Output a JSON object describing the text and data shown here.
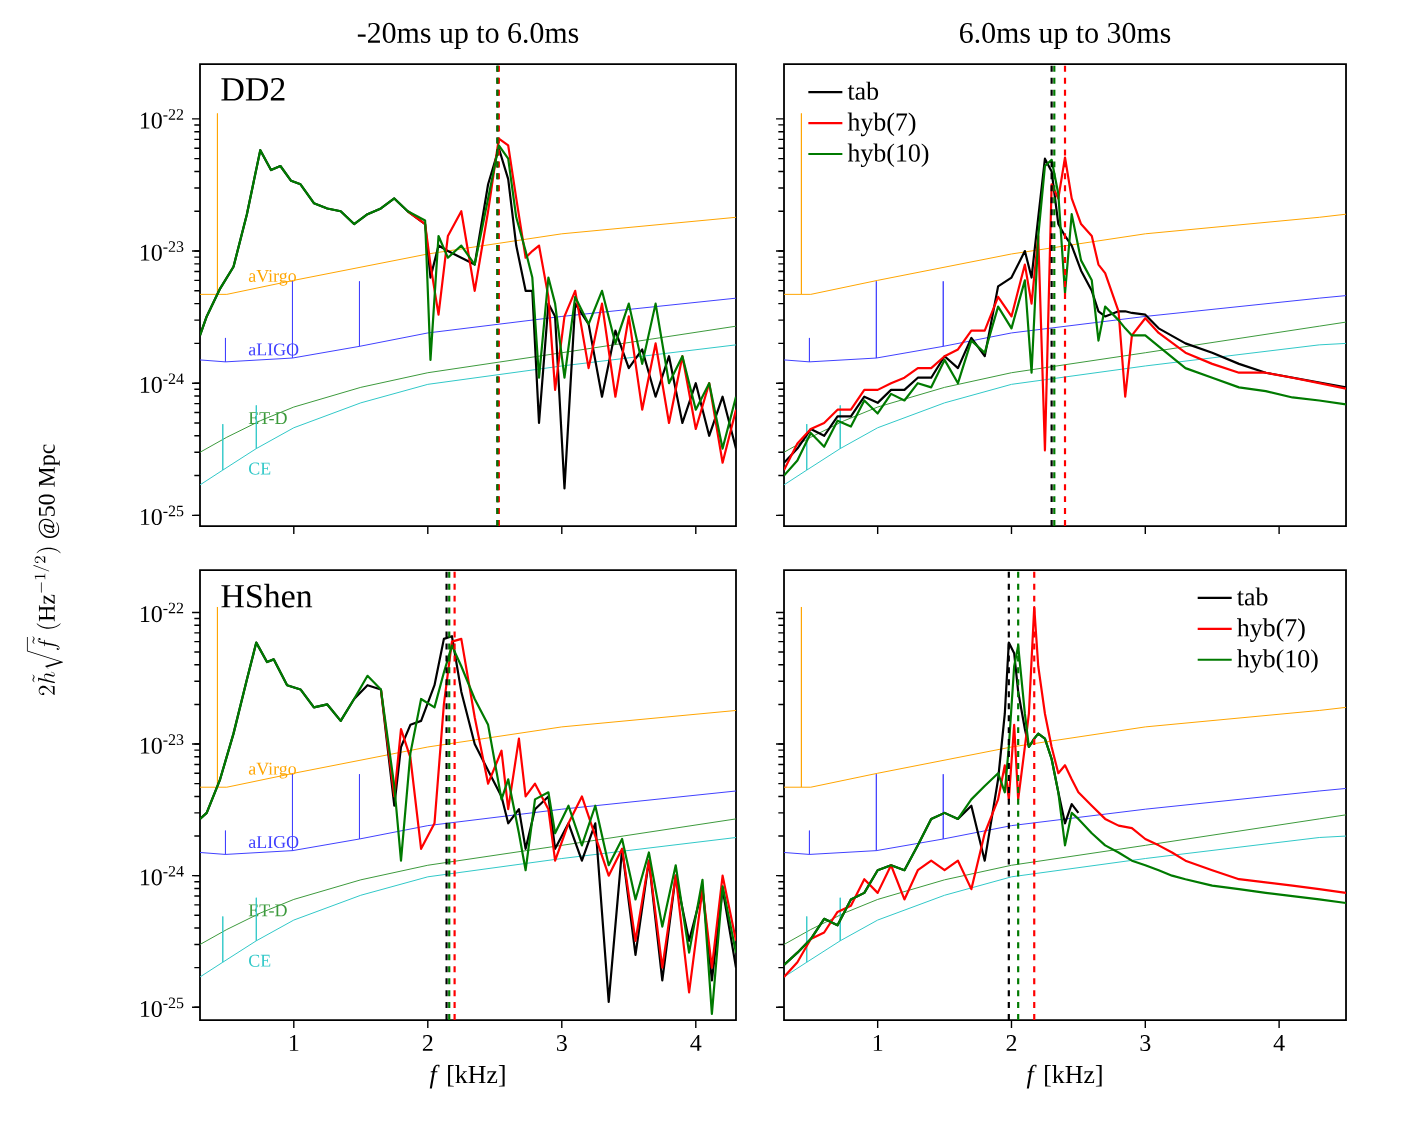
{
  "chart_data": [
    {
      "type": "line",
      "title": "-20ms up to 6.0ms",
      "ylabel": "2\\tilde{h}\\sqrt{\\tilde{f}}\\ (\\mathrm{Hz}^{-1/2})\\ \\mathrm{@50\\ Mpc}",
      "annotations": [
        "DD2"
      ],
      "log": "y",
      "legend": false,
      "tick_labels": "y",
      "xlim": [
        0.3,
        4.3
      ],
      "ylim": [
        8.3e-26,
        2.6e-22
      ],
      "xticks": [
        1,
        2,
        3,
        4
      ],
      "yticks": [
        {
          "value": 1e-25,
          "label": "10$^{-25}$"
        },
        {
          "value": 1e-24,
          "label": "10$^{-24}$"
        },
        {
          "value": 1e-23,
          "label": "10$^{-23}$"
        },
        {
          "value": 1e-22,
          "label": "10$^{-22}$"
        }
      ],
      "x": [
        0.3,
        0.35,
        0.45,
        0.55,
        0.65,
        0.75,
        0.83,
        0.9,
        0.98,
        1.05,
        1.15,
        1.25,
        1.35,
        1.45,
        1.55,
        1.65,
        1.75,
        1.85,
        1.98,
        2.02,
        2.08,
        2.15,
        2.25,
        2.35,
        2.45,
        2.53,
        2.6,
        2.66,
        2.73,
        2.78,
        2.83,
        2.9,
        2.95,
        3.02,
        3.1,
        3.2,
        3.3,
        3.4,
        3.5,
        3.6,
        3.7,
        3.8,
        3.9,
        4.0,
        4.1,
        4.2,
        4.3
      ],
      "series": [
        {
          "name": "aVirgo",
          "color": "#ffa500",
          "x": [
            0.3,
            0.43,
            0.43,
            0.43,
            0.5,
            1.0,
            2.0,
            3.0,
            4.3
          ],
          "values": [
            4.7e-24,
            4.7e-24,
            1.1e-22,
            4.7e-24,
            4.7e-24,
            6e-24,
            9.5e-24,
            1.35e-23,
            1.8e-23
          ]
        },
        {
          "name": "aLIGO",
          "color": "#4040ff",
          "x": [
            0.3,
            0.49,
            0.49,
            0.49,
            0.99,
            0.99,
            0.99,
            1.49,
            1.49,
            1.49,
            2.0,
            3.0,
            4.3
          ],
          "values": [
            1.5e-24,
            1.45e-24,
            2.2e-24,
            1.45e-24,
            1.55e-24,
            5.9e-24,
            1.55e-24,
            1.9e-24,
            5.9e-24,
            1.9e-24,
            2.4e-24,
            3.2e-24,
            4.4e-24
          ]
        },
        {
          "name": "ET-D",
          "color": "#3c9a3c",
          "x": [
            0.3,
            0.5,
            0.75,
            1.0,
            1.5,
            2.0,
            3.0,
            4.3
          ],
          "values": [
            3e-25,
            3.9e-25,
            5.2e-25,
            6.6e-25,
            9.3e-25,
            1.2e-24,
            1.7e-24,
            2.7e-24
          ]
        },
        {
          "name": "CE",
          "color": "#30c8c8",
          "x": [
            0.3,
            0.47,
            0.47,
            0.47,
            0.72,
            0.72,
            0.72,
            1.0,
            1.5,
            2.0,
            3.0,
            4.3
          ],
          "values": [
            1.7e-25,
            2.2e-25,
            4.9e-25,
            2.2e-25,
            3.2e-25,
            6.8e-25,
            3.2e-25,
            4.6e-25,
            7.1e-25,
            9.8e-25,
            1.35e-24,
            1.95e-24
          ]
        },
        {
          "color": "#000000",
          "values": [
            2.3e-24,
            3.2e-24,
            5.2e-24,
            7.6e-24,
            1.9e-23,
            5.8e-23,
            4.1e-23,
            4.4e-23,
            3.4e-23,
            3.2e-23,
            2.3e-23,
            2.1e-23,
            2e-23,
            1.6e-23,
            1.9e-23,
            2.1e-23,
            2.5e-23,
            2e-23,
            1.6e-23,
            6.3e-24,
            1.1e-23,
            1e-23,
            8.9e-24,
            7.9e-24,
            3.2e-23,
            6e-23,
            3.5e-23,
            1.1e-23,
            5e-24,
            5e-24,
            5e-25,
            4e-24,
            3.2e-24,
            1.6e-25,
            4e-24,
            2.8e-24,
            7.9e-25,
            2.5e-24,
            1.3e-24,
            1.8e-24,
            7.9e-25,
            1.6e-24,
            5e-25,
            1e-24,
            4e-25,
            7.9e-25,
            3.2e-25
          ]
        },
        {
          "color": "#ff0000",
          "values": [
            null,
            null,
            null,
            null,
            null,
            null,
            null,
            null,
            null,
            null,
            null,
            null,
            null,
            null,
            null,
            null,
            null,
            2e-23,
            1.6e-23,
            7.9e-24,
            3.3e-24,
            1.3e-23,
            2e-23,
            5e-24,
            2e-23,
            7.1e-23,
            6.3e-23,
            2.5e-23,
            8.9e-24,
            1e-23,
            1.1e-23,
            4.5e-24,
            8.9e-25,
            3.2e-24,
            5e-24,
            1.3e-24,
            4e-24,
            7.9e-25,
            3.2e-24,
            6.3e-25,
            2e-24,
            5e-25,
            1.6e-24,
            4.5e-25,
            1e-24,
            2.5e-25,
            6.3e-25
          ]
        },
        {
          "color": "#007a00",
          "values": [
            2.3e-24,
            3.2e-24,
            5.2e-24,
            7.6e-24,
            1.9e-23,
            5.8e-23,
            4.1e-23,
            4.4e-23,
            3.4e-23,
            3.2e-23,
            2.3e-23,
            2.1e-23,
            2e-23,
            1.6e-23,
            1.9e-23,
            2.1e-23,
            2.5e-23,
            2e-23,
            1.7e-23,
            1.5e-24,
            1.3e-23,
            8.9e-24,
            1.1e-23,
            7.9e-24,
            2.5e-23,
            6.3e-23,
            5e-23,
            1.8e-23,
            1e-23,
            6.3e-24,
            1.1e-24,
            6.3e-24,
            4e-24,
            1.1e-24,
            4.5e-24,
            2.8e-24,
            5e-24,
            2e-24,
            4e-24,
            1.4e-24,
            4e-24,
            1e-24,
            1.6e-24,
            6.3e-25,
            1e-24,
            3.2e-25,
            7.9e-25
          ]
        }
      ],
      "ref_lines": [
        {
          "axis": "x",
          "value": 2.52,
          "color": "#000000",
          "line_style": "dashed"
        },
        {
          "axis": "x",
          "value": 2.53,
          "color": "#ff0000",
          "line_style": "dashed"
        },
        {
          "axis": "x",
          "value": 2.52,
          "color": "#007a00",
          "line_style": "dashed"
        }
      ]
    },
    {
      "type": "line",
      "title": "6.0ms up to 30ms",
      "log": "y",
      "legend": "top left",
      "tick_labels": false,
      "xlim": [
        0.3,
        4.5
      ],
      "ylim": [
        8.3e-26,
        2.6e-22
      ],
      "xticks": [
        1,
        2,
        3,
        4
      ],
      "yticks": [
        {
          "value": 1e-25,
          "label": null
        },
        {
          "value": 1e-24,
          "label": null
        },
        {
          "value": 1e-23,
          "label": null
        },
        {
          "value": 1e-22,
          "label": null
        }
      ],
      "x": [
        0.3,
        0.4,
        0.5,
        0.6,
        0.7,
        0.8,
        0.9,
        1.0,
        1.1,
        1.2,
        1.3,
        1.4,
        1.5,
        1.6,
        1.7,
        1.8,
        1.9,
        2.0,
        2.1,
        2.15,
        2.2,
        2.25,
        2.3,
        2.35,
        2.4,
        2.45,
        2.52,
        2.6,
        2.65,
        2.7,
        2.8,
        2.85,
        2.9,
        3.0,
        3.1,
        3.3,
        3.5,
        3.7,
        3.9,
        4.1,
        4.3,
        4.5
      ],
      "series": [
        {
          "color": "#ffa500",
          "x": [
            0.3,
            0.43,
            0.43,
            0.43,
            0.5,
            1.0,
            2.0,
            3.0,
            4.3,
            4.5
          ],
          "values": [
            4.7e-24,
            4.7e-24,
            1.1e-22,
            4.7e-24,
            4.7e-24,
            6e-24,
            9.5e-24,
            1.35e-23,
            1.8e-23,
            1.9e-23
          ]
        },
        {
          "color": "#4040ff",
          "x": [
            0.3,
            0.49,
            0.49,
            0.49,
            0.99,
            0.99,
            0.99,
            1.49,
            1.49,
            1.49,
            2.0,
            3.0,
            4.3,
            4.5
          ],
          "values": [
            1.5e-24,
            1.45e-24,
            2.2e-24,
            1.45e-24,
            1.55e-24,
            5.9e-24,
            1.55e-24,
            1.9e-24,
            5.9e-24,
            1.9e-24,
            2.4e-24,
            3.2e-24,
            4.4e-24,
            4.6e-24
          ]
        },
        {
          "color": "#3c9a3c",
          "x": [
            0.3,
            0.5,
            0.75,
            1.0,
            1.5,
            2.0,
            3.0,
            4.3,
            4.5
          ],
          "values": [
            3e-25,
            3.9e-25,
            5.2e-25,
            6.6e-25,
            9.3e-25,
            1.2e-24,
            1.7e-24,
            2.7e-24,
            2.9e-24
          ]
        },
        {
          "color": "#30c8c8",
          "x": [
            0.3,
            0.47,
            0.47,
            0.47,
            0.72,
            0.72,
            0.72,
            1.0,
            1.5,
            2.0,
            3.0,
            4.3,
            4.5
          ],
          "values": [
            1.7e-25,
            2.2e-25,
            4.9e-25,
            2.2e-25,
            3.2e-25,
            6.8e-25,
            3.2e-25,
            4.6e-25,
            7.1e-25,
            9.8e-25,
            1.35e-24,
            1.95e-24,
            2e-24
          ]
        },
        {
          "name": "tab",
          "color": "#000000",
          "values": [
            2.5e-25,
            3.2e-25,
            4.5e-25,
            4e-25,
            5.6e-25,
            5.6e-25,
            7.9e-25,
            7.1e-25,
            8.9e-25,
            8.9e-25,
            1.1e-24,
            1.1e-24,
            1.6e-24,
            1.3e-24,
            2.2e-24,
            1.6e-24,
            5.4e-24,
            6.3e-24,
            1e-23,
            6.3e-24,
            1.8e-23,
            5e-23,
            4e-23,
            1.6e-23,
            1.3e-23,
            1.1e-23,
            7.1e-24,
            5e-24,
            3.5e-24,
            3.2e-24,
            3.5e-24,
            3.5e-24,
            3.4e-24,
            3.3e-24,
            2.6e-24,
            2e-24,
            1.7e-24,
            1.4e-24,
            1.2e-24,
            null,
            null,
            9.3e-25
          ]
        },
        {
          "name": "hyb(7)",
          "color": "#ff0000",
          "values": [
            2.2e-25,
            3.5e-25,
            4.5e-25,
            5e-25,
            6.3e-25,
            6.3e-25,
            8.9e-25,
            8.9e-25,
            1e-24,
            1.1e-24,
            1.3e-24,
            1.3e-24,
            1.6e-24,
            1.8e-24,
            2.5e-24,
            2.5e-24,
            4.5e-24,
            3.2e-24,
            7.9e-24,
            4e-24,
            1.3e-23,
            3.1e-25,
            3.2e-23,
            2.5e-23,
            5.1e-23,
            2.5e-23,
            1.6e-23,
            1.3e-23,
            7.9e-24,
            6.8e-24,
            3.5e-24,
            7.9e-25,
            2.3e-24,
            3.1e-24,
            2.4e-24,
            1.7e-24,
            1.4e-24,
            1.2e-24,
            1.2e-24,
            1.1e-24,
            1e-24,
            9.1e-25
          ]
        },
        {
          "name": "hyb(10)",
          "color": "#007a00",
          "values": [
            2e-25,
            2.6e-25,
            4.2e-25,
            3.3e-25,
            5.2e-25,
            4.7e-25,
            7.4e-25,
            5.9e-25,
            8.3e-25,
            7.4e-25,
            1e-24,
            9.3e-25,
            1.5e-24,
            1e-24,
            2.1e-24,
            1.7e-24,
            3.8e-24,
            2.6e-24,
            6e-24,
            1.2e-24,
            1.3e-23,
            4.4e-23,
            4.9e-23,
            2.7e-23,
            4.8e-24,
            1.9e-23,
            8.5e-24,
            6e-24,
            2.1e-24,
            3.8e-24,
            3e-24,
            2.6e-24,
            2.3e-24,
            2.3e-24,
            1.9e-24,
            1.3e-24,
            1.1e-24,
            9.3e-25,
            8.7e-25,
            7.8e-25,
            7.4e-25,
            6.9e-25
          ]
        }
      ],
      "ref_lines": [
        {
          "axis": "x",
          "value": 2.3,
          "color": "#000000",
          "line_style": "dashed"
        },
        {
          "axis": "x",
          "value": 2.4,
          "color": "#ff0000",
          "line_style": "dashed"
        },
        {
          "axis": "x",
          "value": 2.32,
          "color": "#007a00",
          "line_style": "dashed"
        }
      ]
    },
    {
      "type": "line",
      "xlabel": "*f* [kHz]",
      "annotations": [
        "HShen"
      ],
      "log": "y",
      "legend": false,
      "xlim": [
        0.3,
        4.3
      ],
      "ylim": [
        8e-26,
        2.1e-22
      ],
      "xticks": [
        1,
        2,
        3,
        4
      ],
      "yticks": [
        {
          "value": 1e-25,
          "label": "10$^{-25}$"
        },
        {
          "value": 1e-24,
          "label": "10$^{-24}$"
        },
        {
          "value": 1e-23,
          "label": "10$^{-23}$"
        },
        {
          "value": 1e-22,
          "label": "10$^{-22}$"
        }
      ],
      "x": [
        0.3,
        0.35,
        0.45,
        0.55,
        0.65,
        0.72,
        0.8,
        0.85,
        0.95,
        1.05,
        1.15,
        1.25,
        1.35,
        1.45,
        1.55,
        1.65,
        1.75,
        1.8,
        1.87,
        1.95,
        2.05,
        2.12,
        2.18,
        2.25,
        2.35,
        2.45,
        2.55,
        2.6,
        2.68,
        2.73,
        2.8,
        2.9,
        2.95,
        3.05,
        3.15,
        3.25,
        3.35,
        3.45,
        3.55,
        3.65,
        3.75,
        3.85,
        3.95,
        4.05,
        4.12,
        4.2,
        4.3
      ],
      "series": [
        {
          "name": "aVirgo",
          "color": "#ffa500",
          "x": [
            0.3,
            0.43,
            0.43,
            0.43,
            0.5,
            1.0,
            2.0,
            3.0,
            4.3
          ],
          "values": [
            4.7e-24,
            4.7e-24,
            1.1e-22,
            4.7e-24,
            4.7e-24,
            6e-24,
            9.5e-24,
            1.35e-23,
            1.8e-23
          ]
        },
        {
          "name": "aLIGO",
          "color": "#4040ff",
          "x": [
            0.3,
            0.49,
            0.49,
            0.49,
            0.99,
            0.99,
            0.99,
            1.49,
            1.49,
            1.49,
            2.0,
            3.0,
            4.3
          ],
          "values": [
            1.5e-24,
            1.45e-24,
            2.2e-24,
            1.45e-24,
            1.55e-24,
            5.9e-24,
            1.55e-24,
            1.9e-24,
            5.9e-24,
            1.9e-24,
            2.4e-24,
            3.2e-24,
            4.4e-24
          ]
        },
        {
          "name": "ET-D",
          "color": "#3c9a3c",
          "x": [
            0.3,
            0.5,
            0.75,
            1.0,
            1.5,
            2.0,
            3.0,
            4.3
          ],
          "values": [
            3e-25,
            3.9e-25,
            5.2e-25,
            6.6e-25,
            9.3e-25,
            1.2e-24,
            1.7e-24,
            2.7e-24
          ]
        },
        {
          "name": "CE",
          "color": "#30c8c8",
          "x": [
            0.3,
            0.47,
            0.47,
            0.47,
            0.72,
            0.72,
            0.72,
            1.0,
            1.5,
            2.0,
            3.0,
            4.3
          ],
          "values": [
            1.7e-25,
            2.2e-25,
            4.9e-25,
            2.2e-25,
            3.2e-25,
            6.8e-25,
            3.2e-25,
            4.6e-25,
            7.1e-25,
            9.8e-25,
            1.35e-24,
            1.95e-24
          ]
        },
        {
          "color": "#000000",
          "values": [
            2.7e-24,
            3e-24,
            5.4e-24,
            1.2e-23,
            3.1e-23,
            5.9e-23,
            4.2e-23,
            4.4e-23,
            2.8e-23,
            2.6e-23,
            1.9e-23,
            2e-23,
            1.5e-23,
            2.2e-23,
            2.8e-23,
            2.6e-23,
            3.4e-24,
            9.5e-24,
            1.4e-23,
            1.5e-23,
            2.8e-23,
            6.3e-23,
            6.6e-23,
            2.5e-23,
            1e-23,
            6.3e-24,
            4e-24,
            2.5e-24,
            3.2e-24,
            1.6e-24,
            3.2e-24,
            4e-24,
            1.6e-24,
            2.5e-24,
            1.3e-24,
            2.5e-24,
            1.1e-25,
            1.6e-24,
            2.5e-25,
            1.3e-24,
            1.6e-25,
            1e-24,
            3.2e-25,
            7.9e-25,
            1.6e-25,
            7.9e-25,
            2e-25
          ]
        },
        {
          "color": "#ff0000",
          "values": [
            null,
            null,
            null,
            null,
            null,
            null,
            null,
            null,
            null,
            null,
            null,
            null,
            null,
            null,
            null,
            2.6e-23,
            4e-24,
            1.3e-23,
            7.9e-24,
            1.6e-24,
            2.5e-24,
            2e-23,
            6e-23,
            6.3e-23,
            1.6e-23,
            5e-24,
            8.9e-24,
            3.2e-24,
            1.1e-23,
            4e-24,
            5e-24,
            3.2e-24,
            1.3e-24,
            2.5e-24,
            4e-24,
            2e-24,
            1e-24,
            1.6e-24,
            3.2e-25,
            1.3e-24,
            2e-25,
            1e-24,
            1.3e-25,
            7.9e-25,
            2e-25,
            1e-24,
            3.2e-25
          ]
        },
        {
          "color": "#007a00",
          "values": [
            2.7e-24,
            3e-24,
            5.4e-24,
            1.2e-23,
            3.1e-23,
            5.9e-23,
            4.2e-23,
            4.4e-23,
            2.8e-23,
            2.6e-23,
            1.9e-23,
            2e-23,
            1.5e-23,
            2.2e-23,
            3.3e-23,
            2.6e-23,
            4.8e-24,
            1.3e-24,
            8.5e-24,
            2.2e-23,
            1.9e-23,
            3.5e-23,
            5.6e-23,
            3.9e-23,
            2.2e-23,
            1.4e-23,
            3.8e-24,
            5.4e-24,
            2.1e-24,
            1.1e-24,
            3.8e-24,
            4.3e-24,
            2.1e-24,
            3.4e-24,
            1.7e-24,
            3.4e-24,
            1.2e-24,
            1.9e-24,
            6.6e-25,
            1.5e-24,
            4.1e-25,
            1.2e-24,
            2.6e-25,
            9.3e-25,
            8.9e-26,
            8.3e-25,
            2.6e-25
          ]
        }
      ],
      "ref_lines": [
        {
          "axis": "x",
          "value": 2.14,
          "color": "#000000",
          "line_style": "dashed"
        },
        {
          "axis": "x",
          "value": 2.2,
          "color": "#ff0000",
          "line_style": "dashed"
        },
        {
          "axis": "x",
          "value": 2.16,
          "color": "#007a00",
          "line_style": "dashed"
        }
      ]
    },
    {
      "type": "line",
      "xlabel": "*f* [kHz]",
      "log": "y",
      "legend": "top right",
      "tick_labels": "x",
      "xlim": [
        0.3,
        4.5
      ],
      "ylim": [
        8e-26,
        2.1e-22
      ],
      "xticks": [
        1,
        2,
        3,
        4
      ],
      "yticks": [
        {
          "value": 1e-25,
          "label": null
        },
        {
          "value": 1e-24,
          "label": null
        },
        {
          "value": 1e-23,
          "label": null
        },
        {
          "value": 1e-22,
          "label": null
        }
      ],
      "x": [
        0.3,
        0.4,
        0.5,
        0.6,
        0.7,
        0.8,
        0.9,
        1.0,
        1.1,
        1.2,
        1.3,
        1.4,
        1.5,
        1.6,
        1.7,
        1.8,
        1.9,
        1.95,
        1.98,
        2.02,
        2.05,
        2.1,
        2.13,
        2.17,
        2.2,
        2.25,
        2.3,
        2.35,
        2.4,
        2.45,
        2.5,
        2.6,
        2.7,
        2.8,
        2.9,
        3.0,
        3.1,
        3.2,
        3.3,
        3.5,
        3.7,
        3.9,
        4.1,
        4.3,
        4.5
      ],
      "series": [
        {
          "color": "#ffa500",
          "x": [
            0.3,
            0.43,
            0.43,
            0.43,
            0.5,
            1.0,
            2.0,
            3.0,
            4.3,
            4.5
          ],
          "values": [
            4.7e-24,
            4.7e-24,
            1.1e-22,
            4.7e-24,
            4.7e-24,
            6e-24,
            9.5e-24,
            1.35e-23,
            1.8e-23,
            1.9e-23
          ]
        },
        {
          "color": "#4040ff",
          "x": [
            0.3,
            0.49,
            0.49,
            0.49,
            0.99,
            0.99,
            0.99,
            1.49,
            1.49,
            1.49,
            2.0,
            3.0,
            4.3,
            4.5
          ],
          "values": [
            1.5e-24,
            1.45e-24,
            2.2e-24,
            1.45e-24,
            1.55e-24,
            5.9e-24,
            1.55e-24,
            1.9e-24,
            5.9e-24,
            1.9e-24,
            2.4e-24,
            3.2e-24,
            4.4e-24,
            4.6e-24
          ]
        },
        {
          "color": "#3c9a3c",
          "x": [
            0.3,
            0.5,
            0.75,
            1.0,
            1.5,
            2.0,
            3.0,
            4.3,
            4.5
          ],
          "values": [
            3e-25,
            3.9e-25,
            5.2e-25,
            6.6e-25,
            9.3e-25,
            1.2e-24,
            1.7e-24,
            2.7e-24,
            2.9e-24
          ]
        },
        {
          "color": "#30c8c8",
          "x": [
            0.3,
            0.47,
            0.47,
            0.47,
            0.72,
            0.72,
            0.72,
            1.0,
            1.5,
            2.0,
            3.0,
            4.3,
            4.5
          ],
          "values": [
            1.7e-25,
            2.2e-25,
            4.9e-25,
            2.2e-25,
            3.2e-25,
            6.8e-25,
            3.2e-25,
            4.6e-25,
            7.1e-25,
            9.8e-25,
            1.35e-24,
            1.95e-24,
            2e-24
          ]
        },
        {
          "name": "tab",
          "color": "#000000",
          "values": [
            2.1e-25,
            2.6e-25,
            3.3e-25,
            4.7e-25,
            4.2e-25,
            6.6e-25,
            7.4e-25,
            1.1e-24,
            1.2e-24,
            1.1e-24,
            1.7e-24,
            2.7e-24,
            3e-24,
            2.7e-24,
            3.4e-24,
            1.3e-24,
            5.4e-24,
            1.7e-23,
            5.9e-23,
            4.9e-23,
            2.5e-23,
            1.3e-23,
            9.5e-24,
            1.1e-23,
            1.2e-23,
            1.1e-23,
            7.7e-24,
            4.3e-24,
            2.5e-24,
            3.5e-24,
            3e-24,
            null,
            null,
            null,
            null,
            null,
            null,
            null,
            null,
            null,
            null,
            null,
            null,
            null,
            null
          ]
        },
        {
          "name": "hyb(7)",
          "color": "#ff0000",
          "values": [
            1.7e-25,
            2.2e-25,
            3.3e-25,
            3.7e-25,
            5.3e-25,
            5.9e-25,
            9.4e-25,
            7.4e-25,
            1.2e-24,
            6.6e-25,
            1.1e-24,
            1.3e-24,
            1.1e-24,
            1.3e-24,
            7.9e-25,
            2.1e-24,
            3.8e-24,
            6.9e-24,
            3.8e-24,
            1.4e-23,
            3.8e-24,
            9.5e-24,
            1.7e-23,
            1.1e-22,
            3.9e-23,
            1.7e-23,
            9.5e-24,
            6e-24,
            6.9e-24,
            5.4e-24,
            4.3e-24,
            3.4e-24,
            2.7e-24,
            2.4e-24,
            2.3e-24,
            1.9e-24,
            1.7e-24,
            1.5e-24,
            1.3e-24,
            1.1e-24,
            9.4e-25,
            8.9e-25,
            8.4e-25,
            7.9e-25,
            7.4e-25
          ]
        },
        {
          "name": "hyb(10)",
          "color": "#007a00",
          "values": [
            2.1e-25,
            2.6e-25,
            3.3e-25,
            4.7e-25,
            4.2e-25,
            6.6e-25,
            7.4e-25,
            1.1e-24,
            1.2e-24,
            1.1e-24,
            1.7e-24,
            2.7e-24,
            3e-24,
            2.7e-24,
            3.8e-24,
            4.8e-24,
            6e-24,
            4.3e-24,
            9.5e-24,
            3.9e-23,
            5.6e-23,
            1.7e-23,
            9.5e-24,
            1.1e-23,
            1.2e-23,
            1.1e-23,
            7.7e-24,
            4.3e-24,
            1.7e-24,
            3e-24,
            2.7e-24,
            2.1e-24,
            1.7e-24,
            1.5e-24,
            1.3e-24,
            1.2e-24,
            1.1e-24,
            1e-24,
            9.4e-25,
            8.4e-25,
            7.9e-25,
            7.4e-25,
            7e-25,
            6.6e-25,
            6.2e-25
          ]
        }
      ],
      "ref_lines": [
        {
          "axis": "x",
          "value": 1.98,
          "color": "#000000",
          "line_style": "dashed"
        },
        {
          "axis": "x",
          "value": 2.17,
          "color": "#ff0000",
          "line_style": "dashed"
        },
        {
          "axis": "x",
          "value": 2.05,
          "color": "#007a00",
          "line_style": "dashed"
        }
      ]
    }
  ]
}
